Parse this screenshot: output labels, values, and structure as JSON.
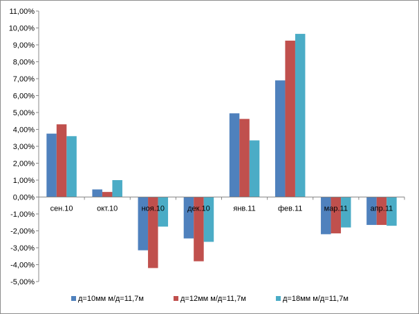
{
  "chart_data": {
    "type": "bar",
    "categories": [
      "сен.10",
      "окт.10",
      "ноя.10",
      "дек.10",
      "янв.11",
      "фев.11",
      "мар.11",
      "апр.11"
    ],
    "series": [
      {
        "name": "д=10мм м/д=11,7м",
        "color": "#4f81bd",
        "values": [
          3.75,
          0.45,
          -3.15,
          -2.45,
          4.95,
          6.9,
          -2.2,
          -1.65
        ]
      },
      {
        "name": "д=12мм м/д=11,7м",
        "color": "#c0504d",
        "values": [
          4.3,
          0.3,
          -4.2,
          -3.8,
          4.62,
          9.25,
          -2.15,
          -1.65
        ]
      },
      {
        "name": "д=18мм м/д=11,7м",
        "color": "#4bacc6",
        "values": [
          3.6,
          1.0,
          -1.75,
          -2.65,
          3.35,
          9.65,
          -1.8,
          -1.7
        ]
      }
    ],
    "ylim": [
      -5,
      11
    ],
    "ytick_step": 1,
    "ytick_labels": [
      "-5,00%",
      "-4,00%",
      "-3,00%",
      "-2,00%",
      "-1,00%",
      "0,00%",
      "1,00%",
      "2,00%",
      "3,00%",
      "4,00%",
      "5,00%",
      "6,00%",
      "7,00%",
      "8,00%",
      "9,00%",
      "10,00%",
      "11,00%"
    ],
    "title": "",
    "xlabel": "",
    "ylabel": "",
    "grid": false,
    "legend_position": "bottom",
    "axis_color": "#878787"
  }
}
